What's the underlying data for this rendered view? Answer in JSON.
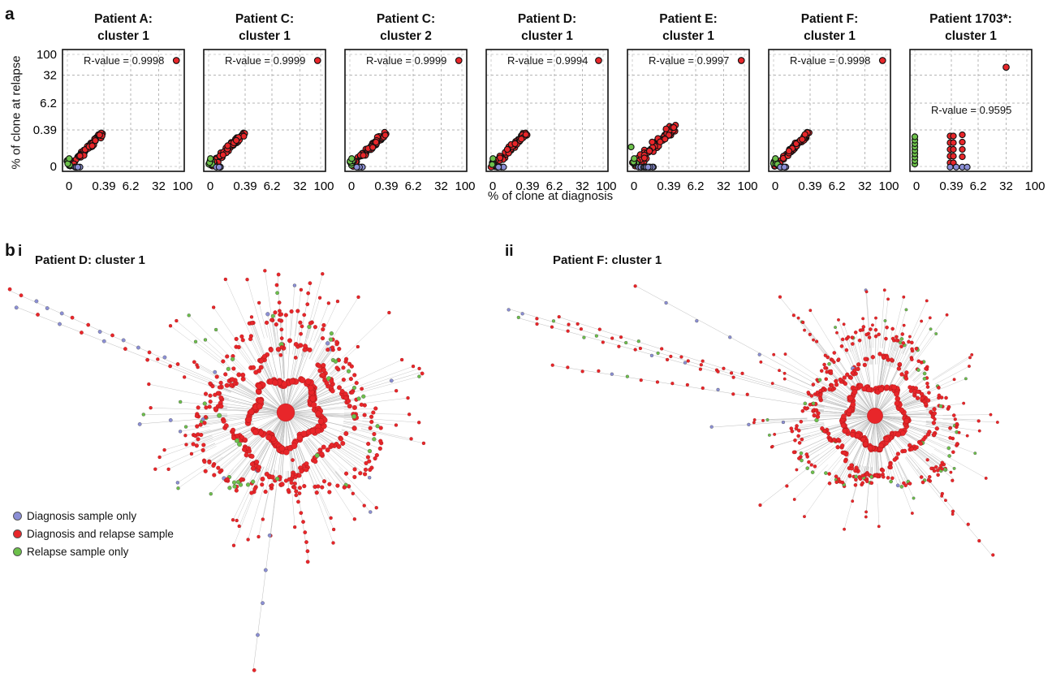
{
  "panels": {
    "a": "a",
    "b": "b",
    "bi": "i",
    "bii": "ii"
  },
  "scatter": {
    "x_axis_title": "% of clone at diagnosis",
    "y_axis_title": "% of clone at relapse",
    "tick_labels": [
      "0",
      "0.39",
      "6.2",
      "32",
      "100"
    ],
    "y_tick_labels": [
      "100",
      "32",
      "6.2",
      "0.39",
      "0"
    ]
  },
  "network": {
    "left_title": "Patient D: cluster 1",
    "right_title": "Patient F: cluster 1"
  },
  "legend": {
    "items": [
      {
        "label": "Diagnosis sample only",
        "color": "#8b8fd6"
      },
      {
        "label": "Diagnosis and relapse sample",
        "color": "#e8262a"
      },
      {
        "label": "Relapse sample only",
        "color": "#6cc04a"
      }
    ]
  },
  "colors": {
    "diagnosis_only": "#8b8fd6",
    "both": "#e8262a",
    "relapse_only": "#6cc04a",
    "edge": "#bdbdbd"
  },
  "chart_data": [
    {
      "type": "scatter",
      "title_line1": "Patient A:",
      "title_line2": "cluster 1",
      "r_label": "R-value = 0.9998",
      "xlabel": "% of clone at diagnosis",
      "ylabel": "% of clone at relapse",
      "x_ticks": [
        "0",
        "0.39",
        "6.2",
        "32",
        "100"
      ],
      "y_ticks": [
        "0",
        "0.39",
        "6.2",
        "32",
        "100"
      ],
      "outlier": [
        80,
        80
      ],
      "grid": true
    },
    {
      "type": "scatter",
      "title_line1": "Patient C:",
      "title_line2": "cluster 1",
      "r_label": "R-value = 0.9999",
      "xlabel": "% of clone at diagnosis",
      "ylabel": "% of clone at relapse",
      "x_ticks": [
        "0",
        "0.39",
        "6.2",
        "32",
        "100"
      ],
      "y_ticks": [
        "0",
        "0.39",
        "6.2",
        "32",
        "100"
      ],
      "outlier": [
        80,
        80
      ],
      "grid": true
    },
    {
      "type": "scatter",
      "title_line1": "Patient C:",
      "title_line2": "cluster 2",
      "r_label": "R-value = 0.9999",
      "xlabel": "% of clone at diagnosis",
      "ylabel": "% of clone at relapse",
      "x_ticks": [
        "0",
        "0.39",
        "6.2",
        "32",
        "100"
      ],
      "y_ticks": [
        "0",
        "0.39",
        "6.2",
        "32",
        "100"
      ],
      "outlier": [
        80,
        80
      ],
      "grid": true
    },
    {
      "type": "scatter",
      "title_line1": "Patient D:",
      "title_line2": "cluster 1",
      "r_label": "R-value = 0.9994",
      "xlabel": "% of clone at diagnosis",
      "ylabel": "% of clone at relapse",
      "x_ticks": [
        "0",
        "0.39",
        "6.2",
        "32",
        "100"
      ],
      "y_ticks": [
        "0",
        "0.39",
        "6.2",
        "32",
        "100"
      ],
      "outlier": [
        80,
        78
      ],
      "grid": true
    },
    {
      "type": "scatter",
      "title_line1": "Patient E:",
      "title_line2": "cluster 1",
      "r_label": "R-value = 0.9997",
      "xlabel": "% of clone at diagnosis",
      "ylabel": "% of clone at relapse",
      "x_ticks": [
        "0",
        "0.39",
        "6.2",
        "32",
        "100"
      ],
      "y_ticks": [
        "0",
        "0.39",
        "6.2",
        "32",
        "100"
      ],
      "outlier": [
        80,
        80
      ],
      "grid": true
    },
    {
      "type": "scatter",
      "title_line1": "Patient F:",
      "title_line2": "cluster 1",
      "r_label": "R-value = 0.9998",
      "xlabel": "% of clone at diagnosis",
      "ylabel": "% of clone at relapse",
      "x_ticks": [
        "0",
        "0.39",
        "6.2",
        "32",
        "100"
      ],
      "y_ticks": [
        "0",
        "0.39",
        "6.2",
        "32",
        "100"
      ],
      "outlier": [
        80,
        80
      ],
      "grid": true
    },
    {
      "type": "scatter",
      "title_line1": "Patient 1703*:",
      "title_line2": "cluster 1",
      "r_label": "R-value = 0.9595",
      "xlabel": "% of clone at diagnosis",
      "ylabel": "% of clone at relapse",
      "x_ticks": [
        "0",
        "0.39",
        "6.2",
        "32",
        "100"
      ],
      "y_ticks": [
        "0",
        "0.39",
        "6.2",
        "32",
        "100"
      ],
      "outlier": [
        32,
        45
      ],
      "grid": true
    }
  ]
}
